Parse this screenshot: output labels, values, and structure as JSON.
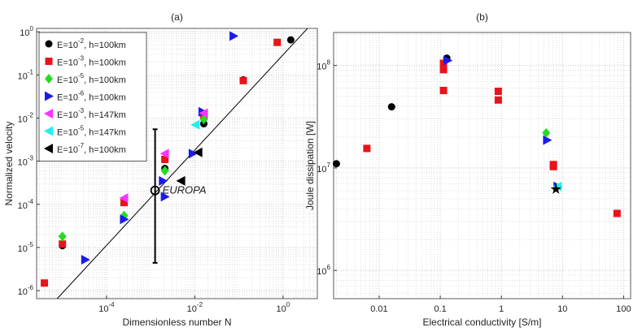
{
  "chart_data": [
    {
      "type": "scatter",
      "title": "(a)",
      "xlabel": "Dimensionless number N",
      "ylabel": "Normalized velocity",
      "xscale": "log",
      "yscale": "log",
      "grid": true,
      "legend": "upper left",
      "xlim": [
        2.6e-06,
        6
      ],
      "ylim": [
        6.5e-07,
        1.2
      ],
      "xticks": [
        {
          "value": 0.0001,
          "label": "10^-4"
        },
        {
          "value": 0.01,
          "label": "10^-2"
        },
        {
          "value": 1,
          "label": "10^0"
        }
      ],
      "yticks": [
        {
          "value": 1e-06,
          "label": "10^-6"
        },
        {
          "value": 1e-05,
          "label": "10^-5"
        },
        {
          "value": 0.0001,
          "label": "10^-4"
        },
        {
          "value": 0.001,
          "label": "10^-3"
        },
        {
          "value": 0.01,
          "label": "10^-2"
        },
        {
          "value": 0.1,
          "label": "10^-1"
        },
        {
          "value": 1,
          "label": "10^0"
        }
      ],
      "series": [
        {
          "name": "E=10^-2, h=100km",
          "color": "#000000",
          "marker": "circle",
          "x": [
            1e-05,
            0.0021,
            0.016,
            0.126,
            1.5
          ],
          "y": [
            1.1e-05,
            0.00068,
            0.0074,
            0.077,
            0.65
          ]
        },
        {
          "name": "E=10^-3, h=100km",
          "color": "#e8141a",
          "marker": "square",
          "x": [
            3.9e-06,
            1e-05,
            0.00025,
            0.0021,
            0.016,
            0.126,
            0.74
          ],
          "y": [
            1.5e-06,
            1.2e-05,
            0.00011,
            0.0011,
            0.011,
            0.074,
            0.57
          ]
        },
        {
          "name": "E=10^-5, h=100km",
          "color": "#22dd22",
          "marker": "diamond",
          "x": [
            1e-05,
            0.00025,
            0.0021,
            0.016
          ],
          "y": [
            1.8e-05,
            5.5e-05,
            0.0006,
            0.0093
          ]
        },
        {
          "name": "E=10^-6, h=100km",
          "color": "#1a1aee",
          "marker": "tri-right",
          "x": [
            3.3e-05,
            0.00025,
            0.0019,
            0.0021,
            0.009,
            0.015,
            0.076
          ],
          "y": [
            5.2e-06,
            4.5e-05,
            0.00035,
            0.00015,
            0.0015,
            0.014,
            0.8
          ]
        },
        {
          "name": "E=10^-3, h=147km",
          "color": "#ff33ff",
          "marker": "tri-left",
          "x": [
            0.00025,
            0.0021,
            0.016
          ],
          "y": [
            0.00014,
            0.0015,
            0.013
          ]
        },
        {
          "name": "E=10^-5, h=147km",
          "color": "#22eeee",
          "marker": "tri-left",
          "x": [
            0.0104
          ],
          "y": [
            0.007
          ]
        },
        {
          "name": "E=10^-7, h=100km",
          "color": "#000000",
          "marker": "tri-left",
          "x": [
            0.0049,
            0.012
          ],
          "y": [
            0.00035,
            0.0016
          ]
        }
      ],
      "fit": {
        "color": "#000000",
        "x": [
          7.6e-06,
          3.7
        ],
        "y": [
          6.5e-07,
          1.24
        ]
      },
      "annotation": {
        "text": "EUROPA",
        "x": 0.00126,
        "y": 0.00021,
        "y_low": 4.4e-06,
        "y_high": 0.0055
      }
    },
    {
      "type": "scatter",
      "title": "(b)",
      "xlabel": "Electrical conductivity [S/m]",
      "ylabel": "Joule dissipation [W]",
      "xscale": "log",
      "yscale": "log",
      "grid": true,
      "xlim": [
        0.0018,
        130
      ],
      "ylim": [
        530000,
        210000000
      ],
      "xticks": [
        0.01,
        0.1,
        1,
        10,
        100
      ],
      "yticks": [
        {
          "value": 1000000,
          "label": "10^6"
        },
        {
          "value": 10000000,
          "label": "10^7"
        },
        {
          "value": 100000000,
          "label": "10^8"
        }
      ],
      "series": [
        {
          "color": "#e8141a",
          "marker": "square",
          "x": [
            0.0063,
            0.113,
            0.113,
            0.113,
            0.89,
            0.89,
            7.1,
            7.1,
            78
          ],
          "y": [
            15500000,
            105000000,
            91000000,
            57000000,
            56000000,
            46000000,
            10800000,
            10300000,
            3600000
          ]
        },
        {
          "color": "#000000",
          "marker": "circle",
          "x": [
            0.002,
            0.016,
            0.128
          ],
          "y": [
            11000000,
            39500000,
            118000000
          ]
        },
        {
          "color": "#1a1aee",
          "marker": "tri-right",
          "x": [
            0.132,
            5.6,
            8.3
          ],
          "y": [
            112000000,
            18700000,
            6600000
          ]
        },
        {
          "color": "#22dd22",
          "marker": "diamond",
          "x": [
            5.4
          ],
          "y": [
            22000000
          ]
        },
        {
          "color": "#22eeee",
          "marker": "tri-left",
          "x": [
            8.3
          ],
          "y": [
            6600000
          ]
        },
        {
          "color": "#000000",
          "marker": "star",
          "x": [
            7.8
          ],
          "y": [
            6200000
          ]
        }
      ]
    }
  ]
}
